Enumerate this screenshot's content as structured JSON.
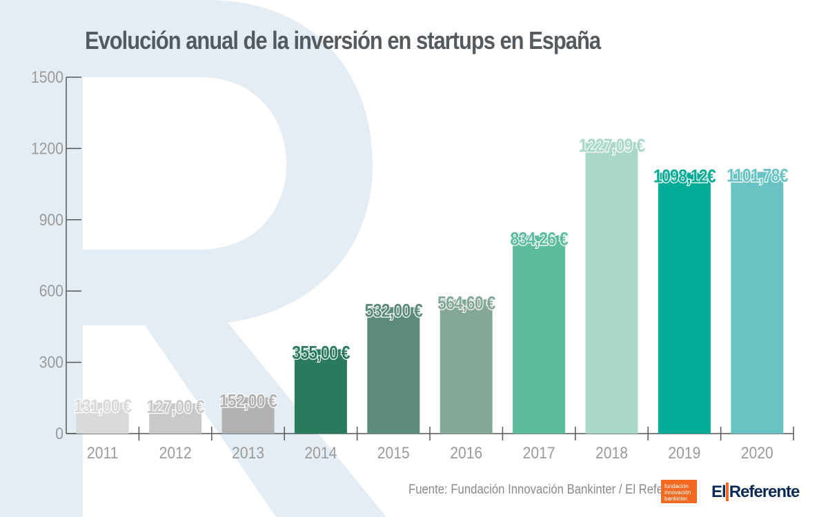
{
  "chart_data": {
    "type": "bar",
    "title": "Evolución anual de la inversión en startups en España",
    "categories": [
      "2011",
      "2012",
      "2013",
      "2014",
      "2015",
      "2016",
      "2017",
      "2018",
      "2019",
      "2020"
    ],
    "values": [
      131.0,
      127.0,
      152.0,
      355.0,
      532.0,
      564.6,
      834.26,
      1227.09,
      1098.12,
      1101.78
    ],
    "value_labels": [
      "131,00 €",
      "127,00 €",
      "152,00 €",
      "355,00 €",
      "532,00 €",
      "564,60 €",
      "834,26 €",
      "1227,09 €",
      "1098,12€",
      "1101,78€"
    ],
    "bar_colors": [
      "#d9d9d9",
      "#c9c9c9",
      "#b1b1b1",
      "#2a7a5e",
      "#5c8c79",
      "#85a797",
      "#5cbd9d",
      "#a9d9c6",
      "#02ab95",
      "#69c3c2"
    ],
    "yticks": [
      0,
      300,
      600,
      900,
      1200,
      1500
    ],
    "ylim": [
      0,
      1500
    ],
    "xlabel": "",
    "ylabel": "",
    "grid": false
  },
  "source": "Fuente: Fundación Innovación Bankinter / El Referente",
  "logos": {
    "fib_lines": [
      "fundación",
      "innovación",
      "bankinter."
    ],
    "referente_left": "El",
    "referente_right": "Referente"
  }
}
